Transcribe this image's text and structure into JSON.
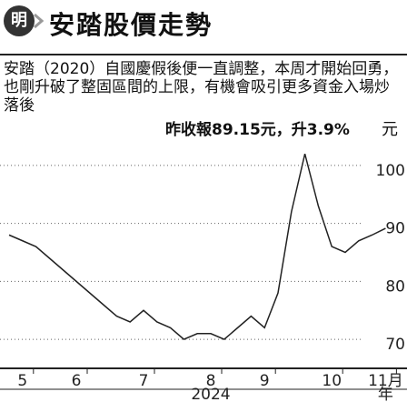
{
  "chart_data": {
    "type": "line",
    "title": "安踏股價走勢",
    "description": "安踏（2020）自國慶假後便一直調整，本周才開始回勇，也剛升破了整固區間的上限，有機會吸引更多資金入場炒落後",
    "annotation": "昨收報89.15元，升3.9%",
    "y_unit": "元",
    "categories": [
      null,
      "5",
      null,
      null,
      null,
      "6",
      null,
      null,
      null,
      null,
      "7",
      null,
      null,
      null,
      null,
      "8",
      null,
      null,
      null,
      "9",
      null,
      null,
      null,
      null,
      "10",
      null,
      null,
      null,
      "11月"
    ],
    "x_group_labels": [
      "2024",
      "年"
    ],
    "series": [
      {
        "name": "安踏",
        "color": "#222222",
        "values": [
          88,
          87,
          86,
          84,
          82,
          80,
          78,
          76,
          74,
          73,
          75,
          73,
          72,
          70,
          71,
          71,
          70,
          72,
          74,
          72,
          78,
          92,
          102,
          93,
          86,
          85,
          87,
          88,
          89.15
        ]
      }
    ],
    "ylim": [
      65,
      105
    ],
    "yticks": [
      70,
      80,
      90,
      100
    ],
    "grid": true
  }
}
